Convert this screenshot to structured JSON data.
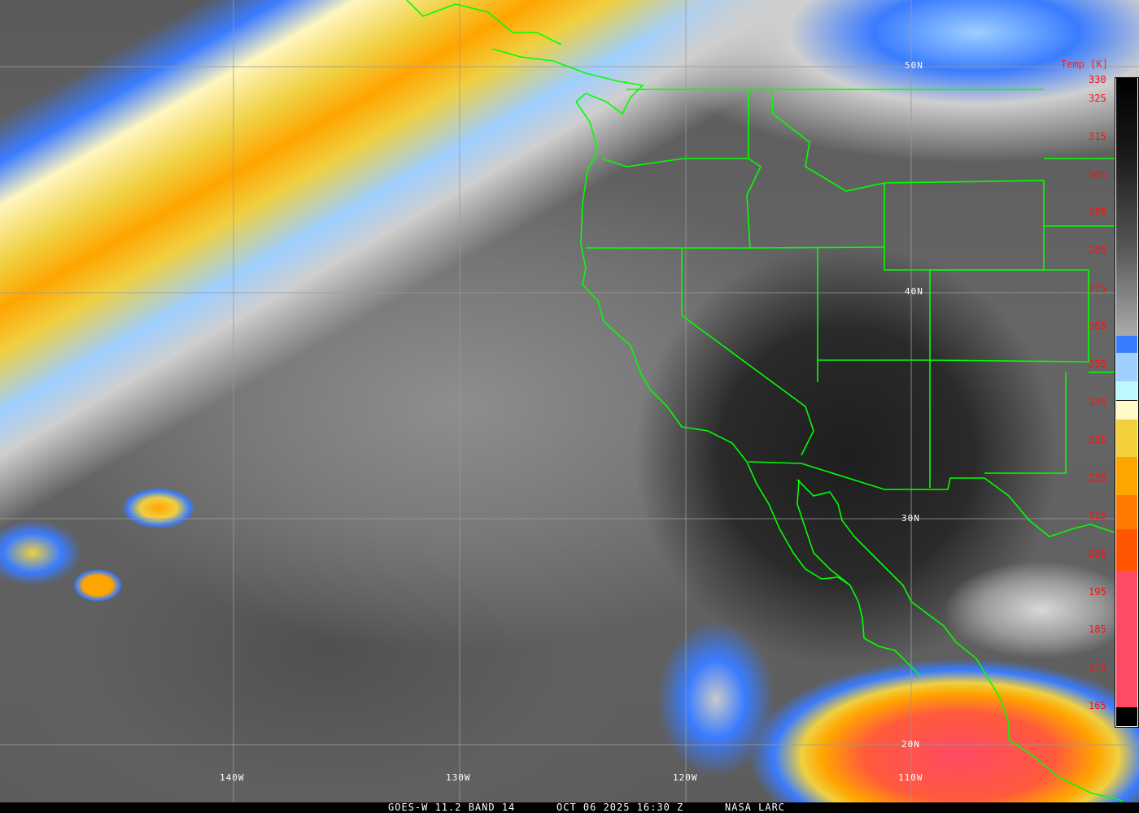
{
  "legend": {
    "title": "Temp [K]",
    "ticks": [
      "330",
      "325",
      "315",
      "305",
      "295",
      "285",
      "275",
      "265",
      "255",
      "245",
      "235",
      "225",
      "215",
      "205",
      "195",
      "185",
      "175",
      "165"
    ],
    "range_k": [
      160,
      330
    ],
    "color_stops": [
      {
        "from": 330,
        "to": 262,
        "color": "gradient-black-to-lightgray"
      },
      {
        "from": 262,
        "to": 257.5,
        "color": "#3a7cff"
      },
      {
        "from": 257.5,
        "to": 255,
        "color": "#9ecfff"
      },
      {
        "from": 255,
        "to": 250,
        "color": "#9ecfff"
      },
      {
        "from": 250,
        "to": 245,
        "color": "#bff7ff"
      },
      {
        "from": 245,
        "to": 240,
        "color": "#fffac8"
      },
      {
        "from": 240,
        "to": 230,
        "color": "#f2d03c"
      },
      {
        "from": 230,
        "to": 220,
        "color": "#ffa500"
      },
      {
        "from": 220,
        "to": 211,
        "color": "#ff7a00"
      },
      {
        "from": 211,
        "to": 200,
        "color": "#ff5500"
      },
      {
        "from": 200,
        "to": 164,
        "color": "#ff4a64"
      },
      {
        "from": 164,
        "to": 160,
        "color": "#000000"
      }
    ]
  },
  "grid": {
    "latitudes": [
      "50N",
      "40N",
      "30N",
      "20N"
    ],
    "longitudes": [
      "140W",
      "130W",
      "120W",
      "110W"
    ]
  },
  "footer": {
    "satellite": "GOES-W 11.2 BAND 14",
    "datetime": "OCT 06 2025 16:30 Z",
    "source": "NASA LARC"
  },
  "colors": {
    "boundaries": "#00ff00",
    "labels": "#ff1010",
    "grid": "#9a9a9a"
  }
}
